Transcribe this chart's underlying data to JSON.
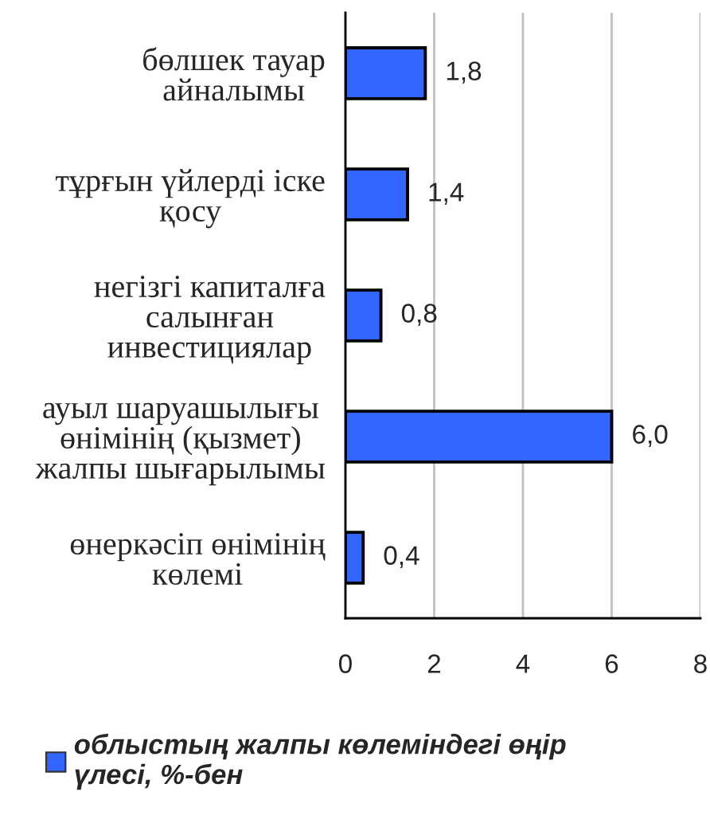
{
  "chart_data": {
    "type": "bar",
    "orientation": "horizontal",
    "categories": [
      "бөлшек тауар\nайналымы",
      "тұрғын үйлерді іске\nқосу",
      "негізгі капиталға\nсалынған\nинвестициялар",
      "ауыл шаруашылығы\nөнімінің (қызмет)\nжалпы шығарылымы",
      "өнеркәсіп өнімінің\nкөлемі"
    ],
    "series": [
      {
        "name": "облыстың жалпы көлеміндегі өңір\nүлесі, %-бен",
        "color": "#3366ff",
        "values": [
          1.8,
          1.4,
          0.8,
          6.0,
          0.4
        ],
        "value_labels": [
          "1,8",
          "1,4",
          "0,8",
          "6,0",
          "0,4"
        ]
      }
    ],
    "xlim": [
      0,
      8
    ],
    "xticks": [
      0,
      2,
      4,
      6,
      8
    ],
    "grid": "x",
    "legend": "bottom"
  }
}
